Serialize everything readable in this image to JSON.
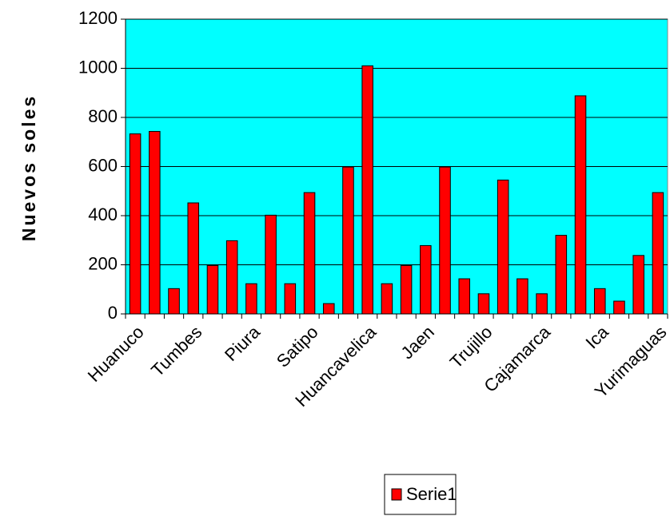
{
  "chart_data": {
    "type": "bar",
    "y_label": "Nuevos soles",
    "categories": [
      "Huanuco",
      null,
      null,
      "Tumbes",
      null,
      null,
      "Piura",
      null,
      null,
      "Satipo",
      null,
      null,
      "Huancavelica",
      null,
      null,
      "Jaen",
      null,
      null,
      "Trujillo",
      null,
      null,
      "Cajamarca",
      null,
      null,
      "Ica",
      null,
      null,
      "Yurimaguas"
    ],
    "series": [
      {
        "name": "Serie1",
        "color": "#ff0000",
        "values": [
          733,
          743,
          103,
          452,
          197,
          298,
          123,
          402,
          123,
          494,
          42,
          598,
          1010,
          123,
          197,
          278,
          598,
          143,
          82,
          545,
          143,
          82,
          320,
          888,
          103,
          52,
          238,
          494
        ]
      }
    ],
    "ylim": [
      0,
      1200
    ],
    "yticks": [
      0,
      200,
      400,
      600,
      800,
      1000,
      1200
    ],
    "grid": true,
    "plot_background": "#00ffff",
    "legend": "bottom"
  }
}
